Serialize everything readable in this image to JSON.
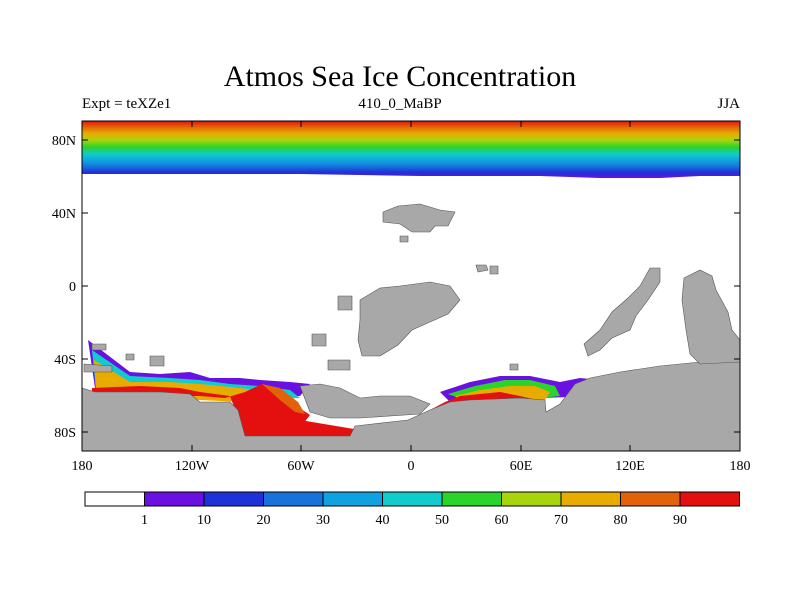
{
  "title": "Atmos Sea Ice Concentration",
  "subtitle_left": "Expt = teXZe1",
  "subtitle_center": "410_0_MaBP",
  "subtitle_right": "JJA",
  "lat_ticks": [
    "80N",
    "40N",
    "0",
    "40S",
    "80S"
  ],
  "lon_ticks": [
    "180",
    "120W",
    "60W",
    "0",
    "60E",
    "120E",
    "180"
  ],
  "colorbar": {
    "colors": [
      "#ffffff",
      "#6a10e0",
      "#1f32d8",
      "#1872dc",
      "#10a2e0",
      "#10cccc",
      "#2ad42a",
      "#a8d40c",
      "#e8ac00",
      "#e2620a",
      "#e41010"
    ],
    "labels": [
      "1",
      "10",
      "20",
      "30",
      "40",
      "50",
      "60",
      "70",
      "80",
      "90"
    ]
  },
  "land_color": "#a8a8a8"
}
